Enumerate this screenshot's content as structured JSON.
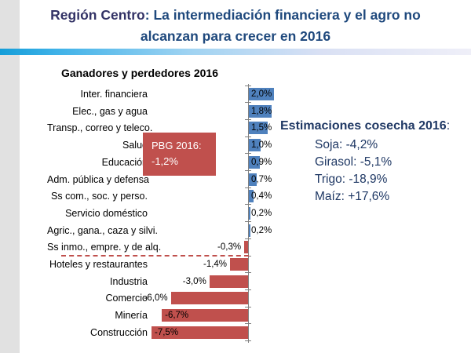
{
  "slide": {
    "title": {
      "emphasis": "Región Centro",
      "separator": ": ",
      "rest": "La intermediación financiera y el agro no alcanzan para crecer en 2016",
      "emphasis_color": "#333366",
      "rest_color": "#1F497D"
    }
  },
  "chart_data": {
    "type": "bar",
    "orientation": "horizontal",
    "title": "Ganadores y perdedores 2016",
    "categories": [
      "Inter. financiera",
      "Elec., gas y agua",
      "Transp., correo y teleco.",
      "Salud",
      "Educación",
      "Adm. pública y defensa",
      "Ss com., soc. y perso.",
      "Servicio doméstico",
      "Agric., gana., caza y silvi.",
      "Ss inmo., empre. y de alq.",
      "Hoteles y restaurantes",
      "Industria",
      "Comercio",
      "Minería",
      "Construcción"
    ],
    "values": [
      2.0,
      1.8,
      1.5,
      1.0,
      0.9,
      0.7,
      0.4,
      0.2,
      0.2,
      -0.3,
      -1.4,
      -3.0,
      -6.0,
      -6.7,
      -7.5
    ],
    "value_labels": [
      "2,0%",
      "1,8%",
      "1,5%",
      "1,0%",
      "0,9%",
      "0,7%",
      "0,4%",
      "0,2%",
      "0,2%",
      "-0,3%",
      "-1,4%",
      "-3,0%",
      "-6,0%",
      "-6,7%",
      "-7,5%"
    ],
    "xlim": [
      -7.6,
      2.2
    ],
    "grid": false,
    "legend": "none",
    "positive_color": "#4F81BD",
    "negative_color": "#C0504D",
    "axis_color": "#808080",
    "annotation_box": {
      "line1": "PBG 2016:",
      "line2": "-1,2%",
      "bg_color": "#C0504D",
      "text_color": "#FFFFFF"
    },
    "reference_line": {
      "style": "dashed",
      "color": "#C0504D",
      "after_category": "Ss inmo., empre. y de alq."
    }
  },
  "estimates": {
    "heading": "Estimaciones cosecha 2016",
    "colon": ":",
    "items": [
      "Soja: -4,2%",
      "Girasol: -5,1%",
      "Trigo: -18,9%",
      "Maíz: +17,6%"
    ],
    "text_color": "#1F3864"
  }
}
